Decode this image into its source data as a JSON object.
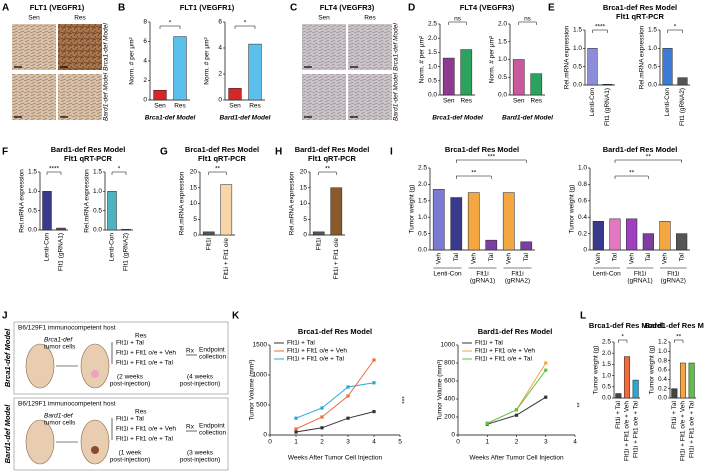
{
  "letters": [
    "A",
    "B",
    "C",
    "D",
    "E",
    "F",
    "G",
    "H",
    "I",
    "J",
    "K",
    "L"
  ],
  "micrographs": [
    {
      "title": "FLT1 (VEGFR1)",
      "columns": [
        "Sen",
        "Res"
      ],
      "rows": [
        "Brca1-def Model",
        "Bard1-def Model"
      ]
    },
    {
      "title": "FLT4 (VEGFR3)",
      "columns": [
        "Sen",
        "Res"
      ],
      "rows": [
        "Brca1-def Model",
        "Bard1-def Model"
      ]
    }
  ],
  "headers": [
    [
      "FLT1 (VEGFR1)"
    ],
    [
      "FLT4 (VEGFR3)"
    ],
    [
      "Brca1-def Res Model",
      "Flt1 qRT-PCR"
    ],
    [
      "Bard1-def Res Model",
      "Flt1 qRT-PCR"
    ],
    [
      "Brca1-def Res Model",
      "Flt1 qRT-PCR"
    ],
    [
      "Bard1-def Res Model",
      "Flt1 qRT-PCR"
    ],
    [
      "Brca1-def Res Model"
    ],
    [
      "Bard1-def Res Model"
    ],
    [
      "Brca1-def Res Model"
    ],
    [
      "Bard1-def Res Model"
    ],
    [
      "Brca1-def Res Model"
    ],
    [
      "Bard1-def Res Model"
    ]
  ],
  "diagram": {
    "rows": [
      {
        "host": "B6/129F1 immunocompetent host",
        "cells": [
          "Brca1-def",
          "tumor cells"
        ],
        "group": "Res",
        "arms": [
          "Flt1i + Tal",
          "Flt1i + Flt1 o/e + Veh",
          "Flt1i + Flt1 o/e + Tal"
        ],
        "rx": "Rx",
        "end": [
          "Endpoint",
          "collection"
        ],
        "time1": [
          "(2 weeks",
          "post-injection)"
        ],
        "time2": [
          "(4 weeks",
          "post-injection)"
        ],
        "side": "Brca1-def Model"
      },
      {
        "host": "B6/129F1 immunocompetent host",
        "cells": [
          "Bard1-def",
          "tumor cells"
        ],
        "group": "Res",
        "arms": [
          "Flt1i + Tal",
          "Flt1i + Flt1 o/e + Veh",
          "Flt1i + Flt1 o/e + Tal"
        ],
        "rx": "Rx",
        "end": [
          "Endpoint",
          "collection"
        ],
        "time1": [
          "(1 week",
          "post-injection)"
        ],
        "time2": [
          "(3 weeks",
          "post-injection)"
        ],
        "side": "Bard1-def Model"
      }
    ]
  },
  "chart_data": [
    {
      "type": "bar",
      "ylabel": "Norm. # per μm²",
      "xlabel": "Brca1-def Model",
      "categories": [
        "Sen",
        "Res"
      ],
      "values": [
        1.0,
        6.5
      ],
      "colors": [
        "#d62728",
        "#5bc0eb"
      ],
      "ylim": [
        0,
        8
      ],
      "yticks": [
        0,
        2,
        4,
        6,
        8
      ],
      "annotations": [
        "*"
      ]
    },
    {
      "type": "bar",
      "ylabel": "Norm. # per μm²",
      "xlabel": "Bard1-def Model",
      "categories": [
        "Sen",
        "Res"
      ],
      "values": [
        0.9,
        4.3
      ],
      "colors": [
        "#d62728",
        "#5bc0eb"
      ],
      "ylim": [
        0,
        6
      ],
      "yticks": [
        0,
        2,
        4,
        6
      ],
      "annotations": [
        "*"
      ]
    },
    {
      "type": "bar",
      "ylabel": "Norm. # per μm²",
      "xlabel": "Brca1-def Model",
      "categories": [
        "Sen",
        "Res"
      ],
      "values": [
        1.3,
        1.6
      ],
      "colors": [
        "#8e3a8e",
        "#2ca25f"
      ],
      "ylim": [
        0,
        2.5
      ],
      "yticks": [
        {
          "value": 0,
          "label": "0.0"
        },
        0.5,
        {
          "value": 1,
          "label": "1.0"
        },
        1.5,
        {
          "value": 2,
          "label": "2.0"
        },
        2.5
      ],
      "annotations": [
        "ns"
      ]
    },
    {
      "type": "bar",
      "ylabel": "Norm. # per μm²",
      "xlabel": "Bard1-def Model",
      "categories": [
        "Sen",
        "Res"
      ],
      "values": [
        1.0,
        0.6
      ],
      "colors": [
        "#c9599c",
        "#2ca25f"
      ],
      "ylim": [
        0,
        2
      ],
      "yticks": [
        {
          "value": 0,
          "label": "0.0"
        },
        0.5,
        {
          "value": 1,
          "label": "1.0"
        },
        1.5,
        {
          "value": 2,
          "label": "2.0"
        }
      ],
      "annotations": [
        "ns"
      ]
    },
    {
      "type": "bar",
      "ylabel": "Rel.mRNA expression",
      "categories": [
        "Lenti-Con",
        "Flt1 (gRNA1)"
      ],
      "values": [
        1.0,
        0.02
      ],
      "colors": [
        "#8c8cd9",
        "#3a3a8c"
      ],
      "ylim": [
        0,
        1.5
      ],
      "yticks": [
        {
          "value": 0,
          "label": "0.0"
        },
        0.5,
        {
          "value": 1,
          "label": "1.0"
        },
        1.5
      ],
      "annotations": [
        "****"
      ]
    },
    {
      "type": "bar",
      "ylabel": "Rel.mRNA expression",
      "categories": [
        "Lenti-Con",
        "Flt1 (gRNA2)"
      ],
      "values": [
        1.0,
        0.2
      ],
      "colors": [
        "#3a7bd5",
        "#555555"
      ],
      "ylim": [
        0,
        1.5
      ],
      "yticks": [
        {
          "value": 0,
          "label": "0.0"
        },
        0.5,
        {
          "value": 1,
          "label": "1.0"
        },
        1.5
      ],
      "annotations": [
        "*"
      ]
    },
    {
      "type": "bar",
      "ylabel": "Rel.mRNA expression",
      "categories": [
        "Lenti-Con",
        "Flt1 (gRNA1)"
      ],
      "values": [
        1.0,
        0.05
      ],
      "colors": [
        "#3a3a8c",
        "#555555"
      ],
      "ylim": [
        0,
        1.5
      ],
      "yticks": [
        {
          "value": 0,
          "label": "0.0"
        },
        0.5,
        {
          "value": 1,
          "label": "1.0"
        },
        1.5
      ],
      "annotations": [
        "****"
      ]
    },
    {
      "type": "bar",
      "ylabel": "Rel.mRNA expression",
      "categories": [
        "Lenti-Con",
        "Flt1 (gRNA2)"
      ],
      "values": [
        1.0,
        0.02
      ],
      "colors": [
        "#4fb3bf",
        "#555555"
      ],
      "ylim": [
        0,
        1.5
      ],
      "yticks": [
        {
          "value": 0,
          "label": "0.0"
        },
        0.5,
        {
          "value": 1,
          "label": "1.0"
        },
        1.5
      ],
      "annotations": [
        "*"
      ]
    },
    {
      "type": "bar",
      "ylabel": "Rel.mRNA expression",
      "categories": [
        "Flt1i",
        "Flt1i + Flt1 o/e"
      ],
      "values": [
        1,
        16
      ],
      "colors": [
        "#555555",
        "#f7d6a8"
      ],
      "ylim": [
        0,
        20
      ],
      "yticks": [
        0,
        5,
        10,
        15,
        20
      ],
      "annotations": [
        "**"
      ]
    },
    {
      "type": "bar",
      "ylabel": "Rel.mRNA expression",
      "categories": [
        "Flt1i",
        "Flt1i + Flt1 o/e"
      ],
      "values": [
        1,
        15
      ],
      "colors": [
        "#555555",
        "#8b5a2b"
      ],
      "ylim": [
        0,
        20
      ],
      "yticks": [
        0,
        5,
        10,
        15,
        20
      ],
      "annotations": [
        "**"
      ]
    },
    {
      "type": "bar",
      "ylabel": "Tumor weight (g)",
      "categories": [
        "Veh",
        "Tal",
        "Veh",
        "Tal",
        "Veh",
        "Tal"
      ],
      "groups": [
        [
          "Lenti-Con"
        ],
        [
          "Flt1i",
          "(gRNA1)"
        ],
        [
          "Flt1i",
          "(gRNA2)"
        ]
      ],
      "values": [
        1.85,
        1.6,
        1.75,
        0.3,
        1.75,
        0.25
      ],
      "colors": [
        "#7b7bd6",
        "#3a3a8c",
        "#f4a640",
        "#7b3fa0",
        "#f4a640",
        "#7b3fa0"
      ],
      "ylim": [
        0,
        2.5
      ],
      "yticks": [
        {
          "value": 0,
          "label": "0.0"
        },
        0.5,
        {
          "value": 1,
          "label": "1.0"
        },
        1.5,
        {
          "value": 2,
          "label": "2.0"
        },
        2.5
      ],
      "annotations": [
        "***",
        "**"
      ]
    },
    {
      "type": "bar",
      "ylabel": "Tumor weight (g)",
      "categories": [
        "Veh",
        "Tal",
        "Veh",
        "Tal",
        "Veh",
        "Tal"
      ],
      "groups": [
        [
          "Lenti-Con"
        ],
        [
          "Flt1i",
          "(gRNA1)"
        ],
        [
          "Flt1i",
          "(gRNA2)"
        ]
      ],
      "values": [
        0.35,
        0.38,
        0.38,
        0.2,
        0.35,
        0.2
      ],
      "colors": [
        "#3a3a8c",
        "#e377c2",
        "#a040c0",
        "#7b3fa0",
        "#f4a640",
        "#555555"
      ],
      "ylim": [
        0,
        1
      ],
      "yticks": [
        0,
        0.2,
        0.4,
        0.6,
        0.8,
        {
          "value": 1,
          "label": "1.0"
        }
      ],
      "annotations": [
        "**",
        "**"
      ]
    },
    {
      "type": "line",
      "ylabel": "Tumor Volume (mm³)",
      "xlabel": "Weeks After Tumor Cell Injection",
      "x": [
        1,
        2,
        3,
        4
      ],
      "series": [
        {
          "name": "Flt1i + Tal",
          "color": "#333333",
          "values": [
            50,
            120,
            280,
            390
          ]
        },
        {
          "name": "Flt1i + Flt1 o/e + Veh",
          "color": "#f26b3a",
          "values": [
            100,
            300,
            650,
            1250
          ]
        },
        {
          "name": "Flt1i + Flt1 o/e + Tal",
          "color": "#2aa7d6",
          "values": [
            280,
            450,
            800,
            870
          ]
        }
      ],
      "xlim": [
        0,
        5
      ],
      "xticks": [
        0,
        1,
        2,
        3,
        4,
        5
      ],
      "ylim": [
        0,
        1500
      ],
      "yticks": [
        0,
        500,
        1000,
        1500
      ],
      "annotations": [
        "***"
      ]
    },
    {
      "type": "line",
      "ylabel": "Tumor Volume (mm³)",
      "xlabel": "Weeks After Tumor Cell Injection",
      "x": [
        1,
        2,
        3
      ],
      "series": [
        {
          "name": "Flt1i + Tal",
          "color": "#333333",
          "values": [
            120,
            220,
            420
          ]
        },
        {
          "name": "Flt1i + Flt1 o/e + Veh",
          "color": "#f4a640",
          "values": [
            130,
            280,
            800
          ]
        },
        {
          "name": "Flt1i + Flt1 o/e + Tal",
          "color": "#5fbf4a",
          "values": [
            130,
            280,
            720
          ]
        }
      ],
      "xlim": [
        0,
        4
      ],
      "xticks": [
        0,
        1,
        2,
        3,
        4
      ],
      "ylim": [
        0,
        1000
      ],
      "yticks": [
        0,
        200,
        400,
        600,
        800,
        1000
      ],
      "annotations": [
        "**"
      ]
    },
    {
      "type": "bar",
      "ylabel": "Tumor weight (g)",
      "categories": [
        "Flt1i + Tal",
        "Flt1i + Flt1 o/e + Veh",
        "Flt1i + Flt1 o/e + Tal"
      ],
      "values": [
        0.2,
        1.85,
        0.8
      ],
      "colors": [
        "#444444",
        "#f26b3a",
        "#2aa7d6"
      ],
      "ylim": [
        0,
        2.5
      ],
      "yticks": [
        {
          "value": 0,
          "label": "0.0"
        },
        0.5,
        {
          "value": 1,
          "label": "1.0"
        },
        1.5,
        {
          "value": 2,
          "label": "2.0"
        },
        2.5
      ],
      "annotations": [
        "*"
      ]
    },
    {
      "type": "bar",
      "ylabel": "Tumor weight (g)",
      "categories": [
        "Flt1i + Tal",
        "Flt1i + Flt1 o/e + Veh",
        "Flt1i + Flt1 o/e + Tal"
      ],
      "values": [
        0.2,
        0.75,
        0.75
      ],
      "colors": [
        "#444444",
        "#f4a640",
        "#5fbf4a"
      ],
      "ylim": [
        0,
        1.2
      ],
      "yticks": [
        {
          "value": 0,
          "label": "0.0"
        },
        0.2,
        0.4,
        0.6,
        0.8,
        {
          "value": 1,
          "label": "1.0"
        },
        1.2
      ],
      "annotations": [
        "**"
      ]
    }
  ]
}
